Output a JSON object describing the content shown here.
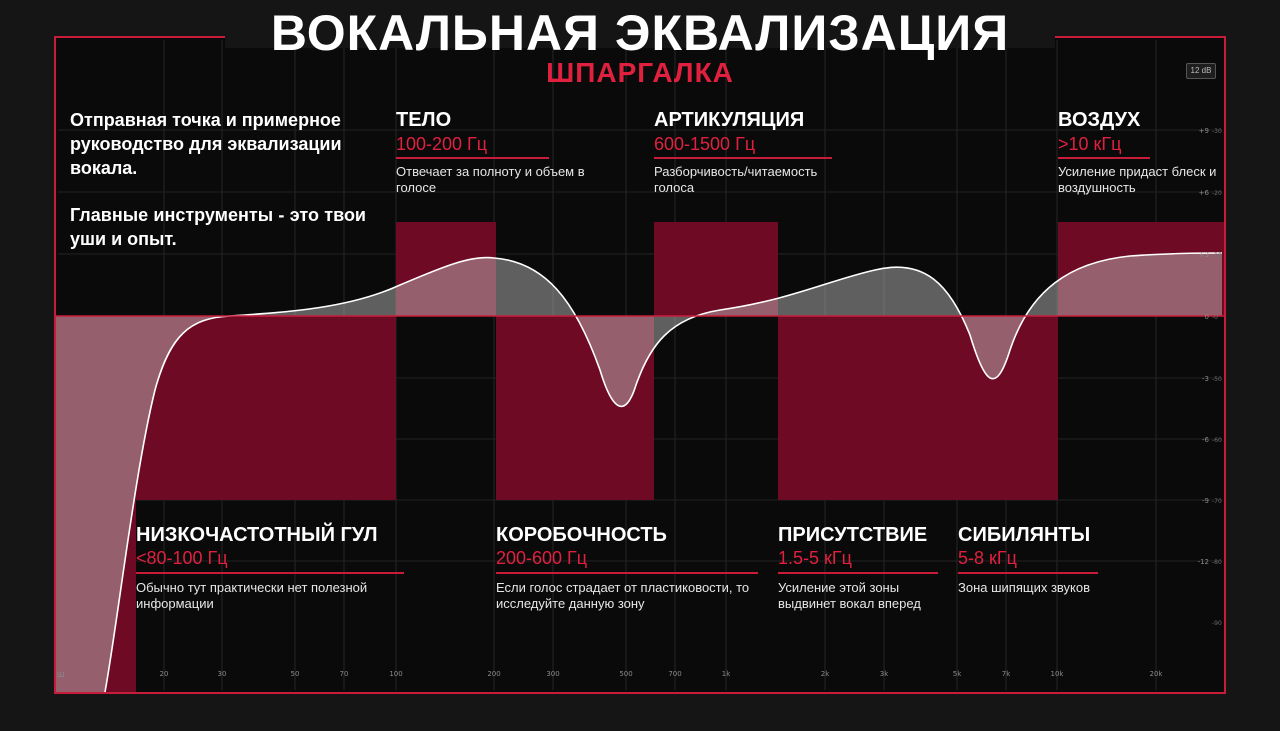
{
  "header": {
    "title": "ВОКАЛЬНАЯ ЭКВАЛИЗАЦИЯ",
    "subtitle": "ШПАРГАЛКА"
  },
  "intro": {
    "text1": "Отправная точка и примерное руководство для эквализации вокала.",
    "text2": "Главные инструменты - это твои уши и опыт."
  },
  "zones": {
    "body": {
      "name": "ТЕЛО",
      "range": "100-200 Гц",
      "desc": "Отвечает за полноту и объем в голосе"
    },
    "articulation": {
      "name": "АРТИКУЛЯЦИЯ",
      "range": "600-1500 Гц",
      "desc": "Разборчивость/читаемость голоса"
    },
    "air": {
      "name": "ВОЗДУХ",
      "range": ">10 кГц",
      "desc": "Усиление придаст блеск и воздушность"
    },
    "rumble": {
      "name": "НИЗКОЧАСТОТНЫЙ ГУЛ",
      "range": "<80-100 Гц",
      "desc": "Обычно тут практически нет полезной информации"
    },
    "boxiness": {
      "name": "КОРОБОЧНОСТЬ",
      "range": "200-600 Гц",
      "desc": "Если голос страдает от пластиковости, то исследуйте данную зону"
    },
    "presence": {
      "name": "ПРИСУТСТВИЕ",
      "range": "1.5-5 кГц",
      "desc": "Усиление этой зоны выдвинет вокал вперед"
    },
    "sibilance": {
      "name": "СИБИЛЯНТЫ",
      "range": "5-8 кГц",
      "desc": "Зона шипящих звуков"
    }
  },
  "analyzer": {
    "range_badge": "12 dB",
    "freq_ticks": [
      "20",
      "30",
      "50",
      "70",
      "100",
      "200",
      "300",
      "500",
      "700",
      "1k",
      "2k",
      "3k",
      "5k",
      "7k",
      "10k",
      "20k"
    ],
    "gain_ticks": [
      "+9",
      "+6",
      "+3",
      "0",
      "-3",
      "-6",
      "-9",
      "-12"
    ],
    "meter_ticks": [
      "-30",
      "-20",
      "-10",
      "-0",
      "-50",
      "-60",
      "-70",
      "-80",
      "-90"
    ],
    "corner_label": "Ш"
  },
  "colors": {
    "accent": "#e0203f",
    "zone_fill": "#6e0a24",
    "frame": "#c81d3a",
    "background": "#151515"
  }
}
